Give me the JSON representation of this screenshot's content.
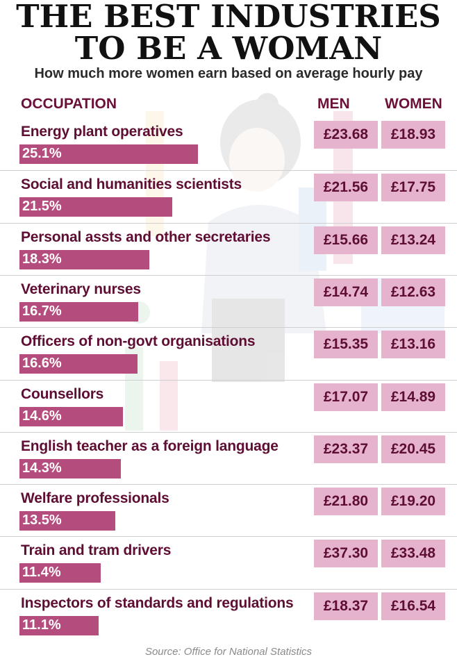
{
  "header": {
    "title_line1": "THE BEST INDUSTRIES",
    "title_line2": "TO BE A WOMAN",
    "subtitle": "How much more women earn based on average hourly pay"
  },
  "columns": {
    "occupation": "OCCUPATION",
    "men": "MEN",
    "women": "WOMEN"
  },
  "source": "Source: Office for National Statistics",
  "colors": {
    "bar": "#b44d7d",
    "cell": "#e5b4cc",
    "text_dark": "#5e0d33"
  },
  "chart_data": {
    "type": "table",
    "rows": [
      {
        "occupation": "Energy plant operatives",
        "pct_label": "25.1%",
        "pct": 25.1,
        "men": "£23.68",
        "women": "£18.93"
      },
      {
        "occupation": "Social and humanities scientists",
        "pct_label": "21.5%",
        "pct": 21.5,
        "men": "£21.56",
        "women": "£17.75"
      },
      {
        "occupation": "Personal assts and other secretaries",
        "pct_label": "18.3%",
        "pct": 18.3,
        "men": "£15.66",
        "women": "£13.24"
      },
      {
        "occupation": "Veterinary nurses",
        "pct_label": "16.7%",
        "pct": 16.7,
        "men": "£14.74",
        "women": "£12.63"
      },
      {
        "occupation": "Officers of non-govt organisations",
        "pct_label": "16.6%",
        "pct": 16.6,
        "men": "£15.35",
        "women": "£13.16"
      },
      {
        "occupation": "Counsellors",
        "pct_label": "14.6%",
        "pct": 14.6,
        "men": "£17.07",
        "women": "£14.89"
      },
      {
        "occupation": "English teacher as a foreign language",
        "pct_label": "14.3%",
        "pct": 14.3,
        "men": "£23.37",
        "women": "£20.45"
      },
      {
        "occupation": "Welfare professionals",
        "pct_label": "13.5%",
        "pct": 13.5,
        "men": "£21.80",
        "women": "£19.20"
      },
      {
        "occupation": "Train and tram drivers",
        "pct_label": "11.4%",
        "pct": 11.4,
        "men": "£37.30",
        "women": "£33.48"
      },
      {
        "occupation": "Inspectors of standards and regulations",
        "pct_label": "11.1%",
        "pct": 11.1,
        "men": "£18.37",
        "women": "£16.54"
      }
    ]
  }
}
